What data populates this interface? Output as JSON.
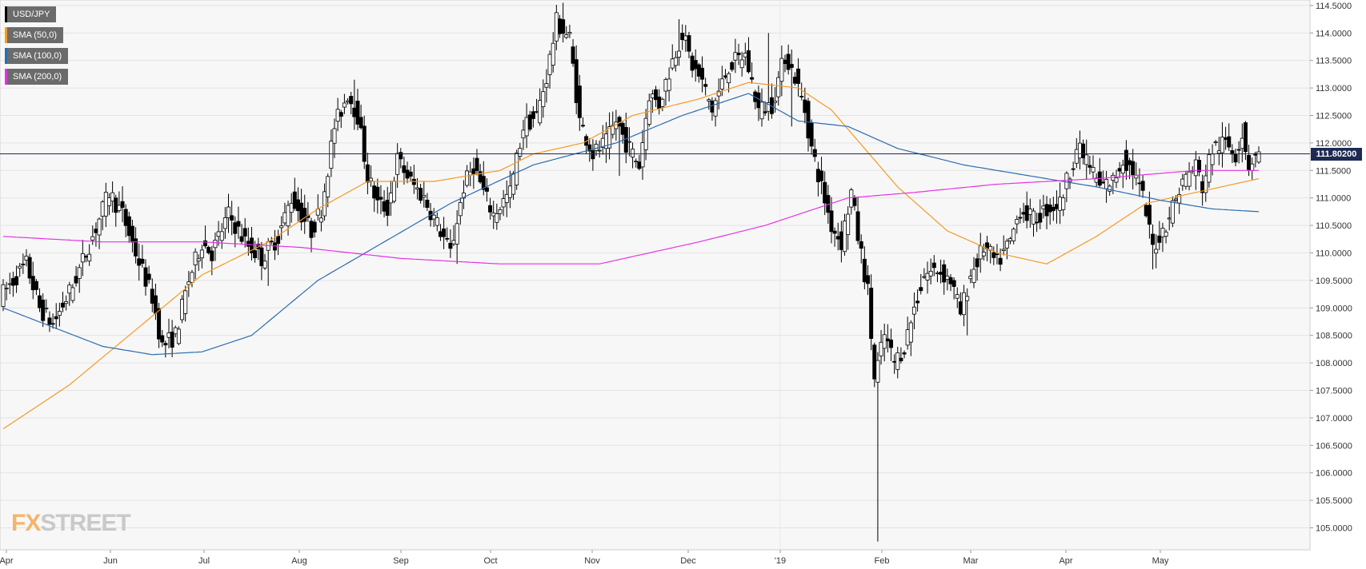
{
  "colors": {
    "plot_bg": "#f7f7f7",
    "grid": "#e3e3e3",
    "candle_up": "#ffffff",
    "candle_down": "#000000",
    "sma50": "#f59a23",
    "sma100": "#2b6cb0",
    "sma200": "#e333e3",
    "price_line": "#1d2b53",
    "axis_text": "#333333"
  },
  "legend": [
    {
      "label": "USD/JPY",
      "color": "#000000"
    },
    {
      "label": "SMA (50,0)",
      "color": "#f59a23"
    },
    {
      "label": "SMA (100,0)",
      "color": "#2b6cb0"
    },
    {
      "label": "SMA (200,0)",
      "color": "#e333e3"
    }
  ],
  "current_price_label": "111.80200",
  "logo": {
    "prefix": "FX",
    "text": "STREET"
  },
  "chart_data": {
    "type": "candlestick",
    "title": "",
    "ylim": [
      104.6,
      114.6
    ],
    "y_ticks": [
      "114.5000",
      "114.0000",
      "113.5000",
      "113.0000",
      "112.5000",
      "112.0000",
      "111.5000",
      "111.0000",
      "110.5000",
      "110.0000",
      "109.5000",
      "109.0000",
      "108.5000",
      "108.0000",
      "107.5000",
      "107.0000",
      "106.5000",
      "106.0000",
      "105.5000",
      "105.0000"
    ],
    "x_ticks": [
      "Apr",
      "Jun",
      "Jul",
      "Aug",
      "Sep",
      "Oct",
      "Nov",
      "Dec",
      "'19",
      "Feb",
      "Mar",
      "Apr",
      "May"
    ],
    "current_price": 111.802,
    "anchors": [
      [
        0,
        109.2
      ],
      [
        8,
        109.8
      ],
      [
        12,
        109.0
      ],
      [
        16,
        108.7
      ],
      [
        22,
        109.4
      ],
      [
        28,
        110.3
      ],
      [
        33,
        111.1
      ],
      [
        37,
        110.7
      ],
      [
        41,
        110.0
      ],
      [
        46,
        109.2
      ],
      [
        49,
        108.3
      ],
      [
        53,
        108.5
      ],
      [
        57,
        109.5
      ],
      [
        61,
        110.2
      ],
      [
        64,
        110.0
      ],
      [
        69,
        110.7
      ],
      [
        74,
        110.2
      ],
      [
        79,
        109.9
      ],
      [
        84,
        110.3
      ],
      [
        88,
        111.0
      ],
      [
        91,
        110.7
      ],
      [
        94,
        110.4
      ],
      [
        97,
        110.8
      ],
      [
        101,
        112.3
      ],
      [
        105,
        112.9
      ],
      [
        108,
        112.5
      ],
      [
        111,
        111.4
      ],
      [
        114,
        110.9
      ],
      [
        117,
        110.8
      ],
      [
        120,
        111.7
      ],
      [
        124,
        111.3
      ],
      [
        128,
        111.0
      ],
      [
        133,
        110.4
      ],
      [
        136,
        110.0
      ],
      [
        140,
        111.2
      ],
      [
        143,
        111.6
      ],
      [
        146,
        111.1
      ],
      [
        149,
        110.7
      ],
      [
        154,
        111.1
      ],
      [
        158,
        112.3
      ],
      [
        162,
        112.5
      ],
      [
        165,
        113.2
      ],
      [
        168,
        114.2
      ],
      [
        172,
        113.9
      ],
      [
        175,
        112.4
      ],
      [
        179,
        111.8
      ],
      [
        183,
        112.0
      ],
      [
        186,
        112.4
      ],
      [
        189,
        112.0
      ],
      [
        193,
        111.6
      ],
      [
        196,
        112.9
      ],
      [
        199,
        112.7
      ],
      [
        203,
        113.5
      ],
      [
        206,
        114.0
      ],
      [
        209,
        113.4
      ],
      [
        212,
        113.1
      ],
      [
        215,
        112.6
      ],
      [
        220,
        113.4
      ],
      [
        225,
        113.6
      ],
      [
        229,
        112.6
      ],
      [
        233,
        112.7
      ],
      [
        237,
        113.6
      ],
      [
        240,
        113.2
      ],
      [
        243,
        112.6
      ],
      [
        245,
        111.9
      ],
      [
        248,
        111.2
      ],
      [
        251,
        110.5
      ],
      [
        254,
        110.2
      ],
      [
        257,
        111.1
      ],
      [
        259,
        110.3
      ],
      [
        262,
        109.3
      ],
      [
        264,
        107.7
      ],
      [
        267,
        108.5
      ],
      [
        270,
        108.0
      ],
      [
        273,
        108.3
      ],
      [
        276,
        109.0
      ],
      [
        279,
        109.6
      ],
      [
        283,
        109.7
      ],
      [
        287,
        109.5
      ],
      [
        290,
        108.9
      ],
      [
        293,
        109.6
      ],
      [
        297,
        110.1
      ],
      [
        301,
        109.8
      ],
      [
        305,
        110.2
      ],
      [
        308,
        110.8
      ],
      [
        312,
        110.6
      ],
      [
        316,
        110.8
      ],
      [
        320,
        110.9
      ],
      [
        323,
        111.5
      ],
      [
        325,
        111.9
      ],
      [
        328,
        111.7
      ],
      [
        332,
        111.2
      ],
      [
        336,
        111.3
      ],
      [
        339,
        111.7
      ],
      [
        342,
        111.5
      ],
      [
        345,
        111.0
      ],
      [
        348,
        110.1
      ],
      [
        351,
        110.4
      ],
      [
        353,
        110.7
      ],
      [
        357,
        111.3
      ],
      [
        361,
        111.6
      ],
      [
        363,
        111.2
      ],
      [
        366,
        111.9
      ],
      [
        370,
        112.0
      ],
      [
        373,
        111.8
      ],
      [
        375,
        112.2
      ],
      [
        377,
        111.6
      ],
      [
        379,
        111.8
      ]
    ],
    "lows": [
      [
        49,
        108.1
      ],
      [
        80,
        109.4
      ],
      [
        137,
        109.8
      ],
      [
        186,
        111.4
      ],
      [
        215,
        112.3
      ],
      [
        238,
        112.3
      ],
      [
        264,
        104.75
      ],
      [
        269,
        107.8
      ],
      [
        291,
        108.5
      ],
      [
        347,
        109.7
      ],
      [
        376,
        111.4
      ]
    ],
    "highs": [
      [
        106,
        113.15
      ],
      [
        169,
        114.55
      ],
      [
        204,
        114.25
      ],
      [
        231,
        114.0
      ],
      [
        238,
        113.7
      ],
      [
        375,
        112.4
      ]
    ],
    "sma50": [
      [
        0,
        106.8
      ],
      [
        20,
        107.6
      ],
      [
        40,
        108.6
      ],
      [
        60,
        109.6
      ],
      [
        80,
        110.2
      ],
      [
        95,
        110.8
      ],
      [
        110,
        111.3
      ],
      [
        130,
        111.3
      ],
      [
        150,
        111.5
      ],
      [
        160,
        111.8
      ],
      [
        175,
        112.0
      ],
      [
        190,
        112.5
      ],
      [
        210,
        112.8
      ],
      [
        225,
        113.1
      ],
      [
        240,
        113.0
      ],
      [
        250,
        112.6
      ],
      [
        260,
        111.9
      ],
      [
        270,
        111.2
      ],
      [
        285,
        110.4
      ],
      [
        300,
        110.0
      ],
      [
        315,
        109.8
      ],
      [
        330,
        110.3
      ],
      [
        345,
        110.9
      ],
      [
        360,
        111.1
      ],
      [
        379,
        111.35
      ]
    ],
    "sma100": [
      [
        0,
        109.0
      ],
      [
        30,
        108.3
      ],
      [
        45,
        108.15
      ],
      [
        60,
        108.2
      ],
      [
        75,
        108.5
      ],
      [
        95,
        109.5
      ],
      [
        115,
        110.2
      ],
      [
        135,
        110.9
      ],
      [
        160,
        111.6
      ],
      [
        185,
        112.0
      ],
      [
        205,
        112.5
      ],
      [
        225,
        112.9
      ],
      [
        240,
        112.4
      ],
      [
        255,
        112.3
      ],
      [
        270,
        111.9
      ],
      [
        290,
        111.6
      ],
      [
        310,
        111.4
      ],
      [
        330,
        111.2
      ],
      [
        350,
        110.95
      ],
      [
        365,
        110.8
      ],
      [
        379,
        110.75
      ]
    ],
    "sma200": [
      [
        0,
        110.3
      ],
      [
        30,
        110.2
      ],
      [
        60,
        110.2
      ],
      [
        90,
        110.1
      ],
      [
        120,
        109.9
      ],
      [
        150,
        109.8
      ],
      [
        180,
        109.8
      ],
      [
        210,
        110.2
      ],
      [
        230,
        110.5
      ],
      [
        255,
        111.0
      ],
      [
        275,
        111.1
      ],
      [
        300,
        111.25
      ],
      [
        330,
        111.35
      ],
      [
        360,
        111.5
      ],
      [
        379,
        111.5
      ]
    ]
  }
}
